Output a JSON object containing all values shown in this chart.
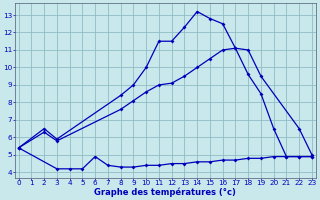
{
  "bg_color": "#c8e8ec",
  "grid_color": "#90bcc4",
  "line_color": "#0000bb",
  "xlabel": "Graphe des températures (°c)",
  "xlim": [
    -0.3,
    23.3
  ],
  "ylim": [
    3.7,
    13.7
  ],
  "yticks": [
    4,
    5,
    6,
    7,
    8,
    9,
    10,
    11,
    12,
    13
  ],
  "xticks": [
    0,
    1,
    2,
    3,
    4,
    5,
    6,
    7,
    8,
    9,
    10,
    11,
    12,
    13,
    14,
    15,
    16,
    17,
    18,
    19,
    20,
    21,
    22,
    23
  ],
  "s1_x": [
    0,
    2,
    3,
    8,
    9,
    10,
    11,
    12,
    13,
    14,
    15,
    16,
    17,
    18,
    19,
    20,
    21,
    22,
    23
  ],
  "s1_y": [
    5.4,
    6.5,
    5.9,
    8.4,
    9.0,
    10.0,
    11.5,
    11.5,
    12.3,
    13.2,
    12.8,
    12.5,
    11.1,
    9.6,
    8.5,
    6.5,
    4.9,
    4.9,
    4.9
  ],
  "s2_x": [
    0,
    2,
    3,
    8,
    9,
    10,
    11,
    12,
    13,
    14,
    15,
    16,
    17,
    18,
    19,
    22,
    23
  ],
  "s2_y": [
    5.4,
    6.3,
    5.8,
    7.6,
    8.1,
    8.6,
    9.0,
    9.1,
    9.5,
    10.0,
    10.5,
    11.0,
    11.1,
    11.0,
    9.5,
    6.5,
    5.0
  ],
  "s3_x": [
    0,
    3,
    4,
    5,
    6,
    7,
    8,
    9,
    10,
    11,
    12,
    13,
    14,
    15,
    16,
    17,
    18,
    19,
    20,
    21,
    22,
    23
  ],
  "s3_y": [
    5.4,
    4.2,
    4.2,
    4.2,
    4.9,
    4.4,
    4.3,
    4.3,
    4.4,
    4.4,
    4.5,
    4.5,
    4.6,
    4.6,
    4.7,
    4.7,
    4.8,
    4.8,
    4.9,
    4.9,
    4.9,
    4.9
  ]
}
